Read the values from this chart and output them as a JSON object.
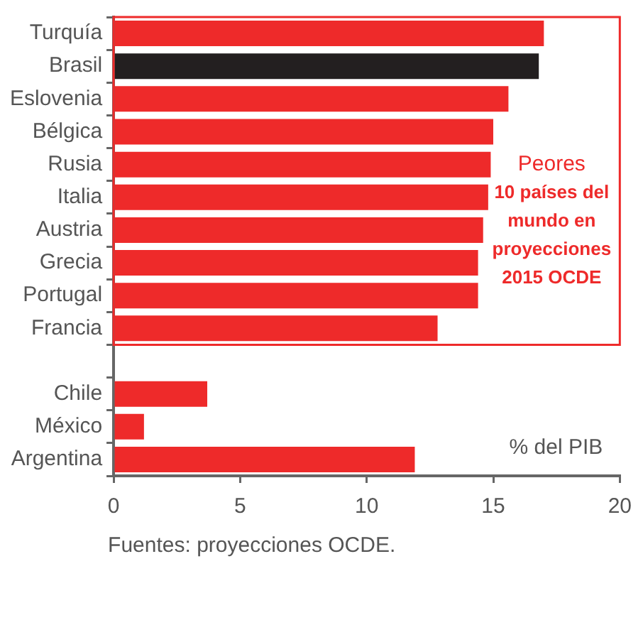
{
  "chart_data": {
    "type": "bar",
    "orientation": "horizontal",
    "categories": [
      "Turquía",
      "Brasil",
      "Eslovenia",
      "Bélgica",
      "Rusia",
      "Italia",
      "Austria",
      "Grecia",
      "Portugal",
      "Francia",
      null,
      "Chile",
      "México",
      "Argentina"
    ],
    "values": [
      17.0,
      16.8,
      15.6,
      15.0,
      14.9,
      14.8,
      14.6,
      14.4,
      14.4,
      12.8,
      null,
      3.7,
      1.2,
      11.9
    ],
    "colors": [
      "#ee2a2a",
      "#231f20",
      "#ee2a2a",
      "#ee2a2a",
      "#ee2a2a",
      "#ee2a2a",
      "#ee2a2a",
      "#ee2a2a",
      "#ee2a2a",
      "#ee2a2a",
      "#ee2a2a",
      "#ee2a2a",
      "#ee2a2a",
      "#ee2a2a"
    ],
    "xlim": [
      0,
      20
    ],
    "xticks": [
      0,
      5,
      10,
      15,
      20
    ],
    "grid": false,
    "legend": false,
    "xlabel": "% del PIB",
    "annotations": [
      "Peores",
      "10 países del mundo en proyecciones 2015 OCDE",
      "Fuentes: proyecciones OCDE."
    ]
  }
}
